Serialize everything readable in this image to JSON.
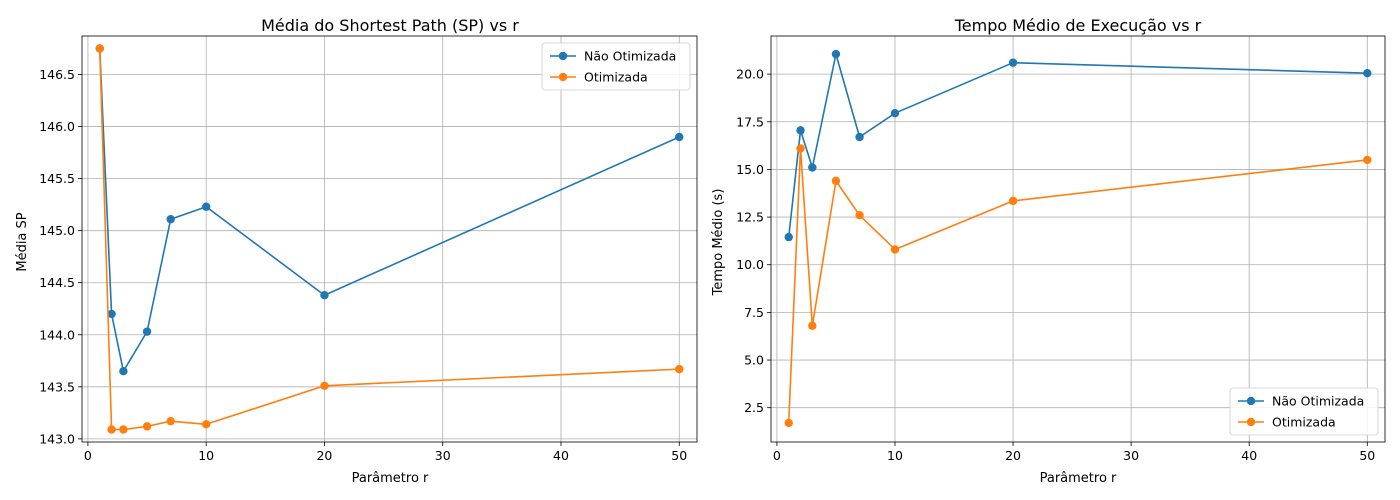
{
  "chart_data": [
    {
      "type": "line",
      "title": "Média do Shortest Path (SP) vs r",
      "xlabel": "Parâmetro r",
      "ylabel": "Média SP",
      "xlim": [
        -0.5,
        51.5
      ],
      "ylim": [
        142.97,
        146.87
      ],
      "xticks": [
        0,
        10,
        20,
        30,
        40,
        50
      ],
      "yticks": [
        143.0,
        143.5,
        144.0,
        144.5,
        145.0,
        145.5,
        146.0,
        146.5
      ],
      "ytick_decimals": 1,
      "grid": true,
      "legend": "top-right",
      "x": [
        1,
        2,
        3,
        5,
        7,
        10,
        20,
        50
      ],
      "series": [
        {
          "name": "Não Otimizada",
          "color": "#1f77b4",
          "values": [
            146.75,
            144.2,
            143.65,
            144.03,
            145.11,
            145.23,
            144.38,
            145.9
          ]
        },
        {
          "name": "Otimizada",
          "color": "#ff7f0e",
          "values": [
            146.75,
            143.09,
            143.09,
            143.12,
            143.17,
            143.14,
            143.51,
            143.67
          ]
        }
      ]
    },
    {
      "type": "line",
      "title": "Tempo Médio de Execução vs r",
      "xlabel": "Parâmetro r",
      "ylabel": "Tempo Médio (s)",
      "xlim": [
        -0.5,
        51.5
      ],
      "ylim": [
        0.7,
        22.0
      ],
      "xticks": [
        0,
        10,
        20,
        30,
        40,
        50
      ],
      "yticks": [
        2.5,
        5.0,
        7.5,
        10.0,
        12.5,
        15.0,
        17.5,
        20.0
      ],
      "ytick_decimals": 1,
      "grid": true,
      "legend": "bottom-right",
      "x": [
        1,
        2,
        3,
        5,
        7,
        10,
        20,
        50
      ],
      "series": [
        {
          "name": "Não Otimizada",
          "color": "#1f77b4",
          "values": [
            11.45,
            17.05,
            15.1,
            21.05,
            16.7,
            17.95,
            20.6,
            20.05
          ]
        },
        {
          "name": "Otimizada",
          "color": "#ff7f0e",
          "values": [
            1.7,
            16.1,
            6.8,
            14.4,
            12.6,
            10.8,
            13.35,
            15.5
          ]
        }
      ]
    }
  ]
}
